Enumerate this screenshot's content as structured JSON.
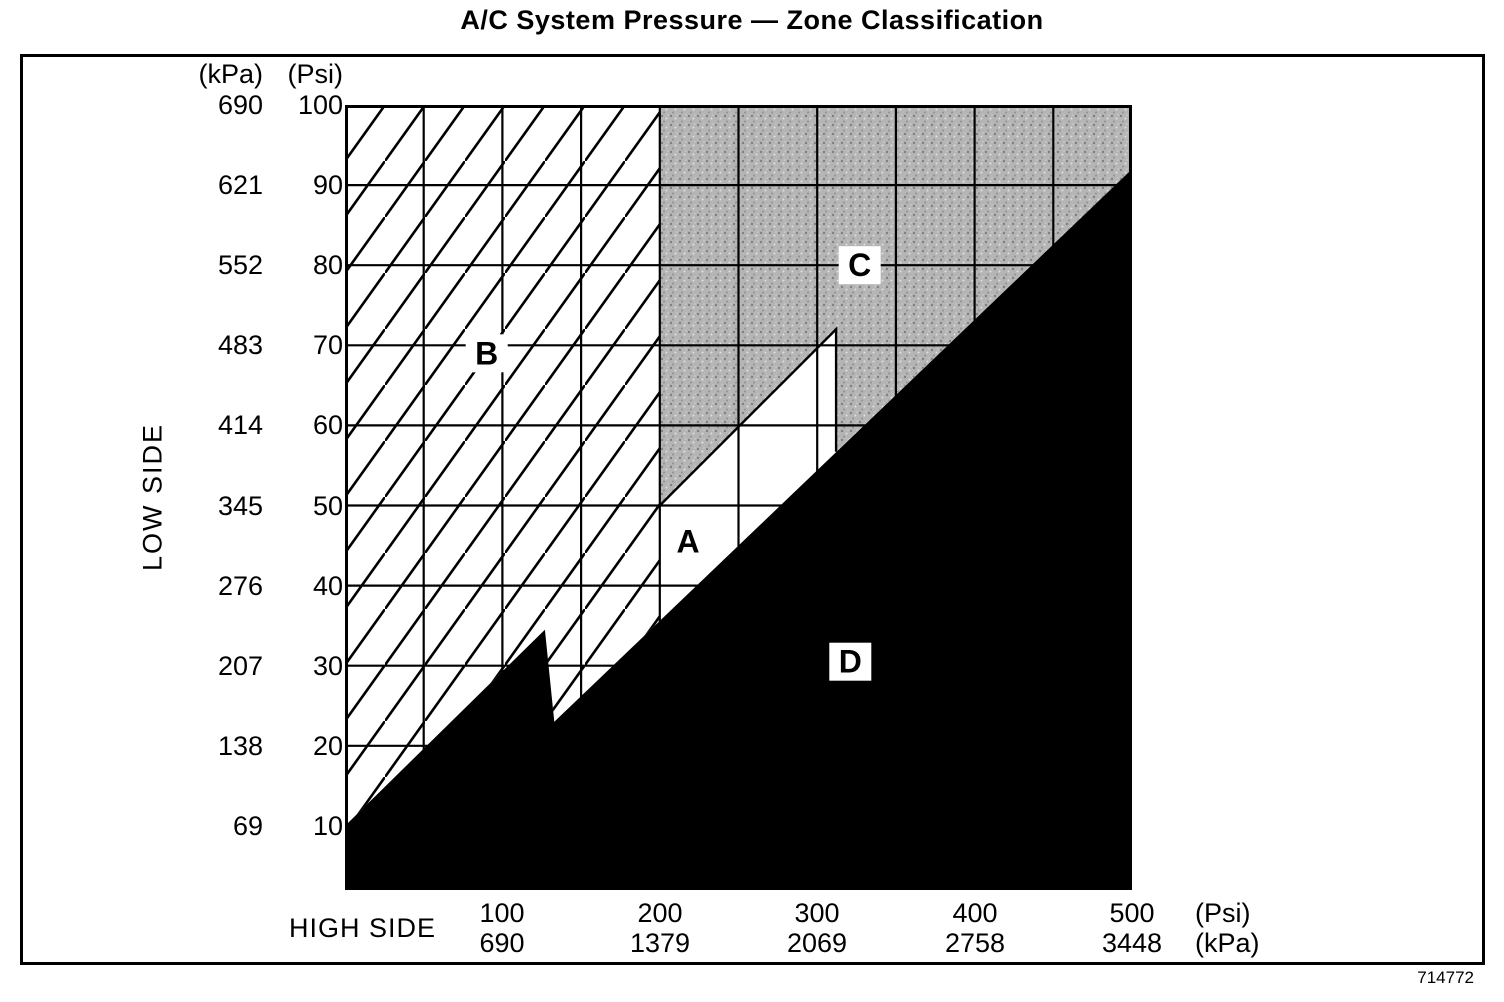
{
  "title": "A/C System Pressure — Zone Classification",
  "figure_number": "714772",
  "axes": {
    "y_title": "LOW SIDE",
    "x_title": "HIGH SIDE",
    "y_unit_kpa": "(kPa)",
    "y_unit_psi": "(Psi)",
    "x_unit_psi": "(Psi)",
    "x_unit_kpa": "(kPa)"
  },
  "colors": {
    "ink": "#000000",
    "paper": "#ffffff",
    "stipple_gray": "#b5b5b5"
  },
  "chart_data": {
    "type": "area",
    "title": "A/C System Pressure — Zone Classification",
    "xlabel": "HIGH SIDE",
    "ylabel": "LOW SIDE",
    "x_axis": {
      "label": "HIGH SIDE",
      "units": [
        "Psi",
        "kPa"
      ],
      "lim": [
        0,
        500
      ],
      "grid_interval_psi": 50,
      "ticks": [
        {
          "psi": "100",
          "kpa": "690"
        },
        {
          "psi": "200",
          "kpa": "1379"
        },
        {
          "psi": "300",
          "kpa": "2069"
        },
        {
          "psi": "400",
          "kpa": "2758"
        },
        {
          "psi": "500",
          "kpa": "3448"
        }
      ]
    },
    "y_axis": {
      "label": "LOW SIDE",
      "units": [
        "kPa",
        "Psi"
      ],
      "lim": [
        2,
        100
      ],
      "grid_interval_psi": 10,
      "ticks": [
        {
          "kpa": "690",
          "psi": "100"
        },
        {
          "kpa": "621",
          "psi": "90"
        },
        {
          "kpa": "552",
          "psi": "80"
        },
        {
          "kpa": "483",
          "psi": "70"
        },
        {
          "kpa": "414",
          "psi": "60"
        },
        {
          "kpa": "345",
          "psi": "50"
        },
        {
          "kpa": "276",
          "psi": "40"
        },
        {
          "kpa": "207",
          "psi": "30"
        },
        {
          "kpa": "138",
          "psi": "20"
        },
        {
          "kpa": "69",
          "psi": "10"
        }
      ]
    },
    "grid": true,
    "zones": [
      {
        "id": "B",
        "label": "B",
        "pattern": "hatch",
        "label_xy": [
          90,
          69
        ],
        "label_box": true,
        "above_grid": false,
        "points": [
          [
            0,
            100
          ],
          [
            200,
            100
          ],
          [
            200,
            35.6
          ],
          [
            133,
            23
          ],
          [
            127,
            34.5
          ],
          [
            0,
            10
          ]
        ]
      },
      {
        "id": "C",
        "label": "C",
        "pattern": "stipple",
        "label_xy": [
          327,
          80
        ],
        "label_box": true,
        "above_grid": false,
        "points": [
          [
            200,
            100
          ],
          [
            500,
            100
          ],
          [
            500,
            92
          ],
          [
            312,
            56.7
          ],
          [
            312,
            72
          ],
          [
            200,
            50
          ]
        ]
      },
      {
        "id": "A",
        "label": "A",
        "pattern": "white",
        "label_xy": [
          218,
          45.5
        ],
        "label_box": false,
        "above_grid": false,
        "points": [
          [
            200,
            50
          ],
          [
            312,
            72
          ],
          [
            312,
            56.7
          ],
          [
            200,
            35.6
          ]
        ]
      },
      {
        "id": "D",
        "label": "D",
        "pattern": "black",
        "label_xy": [
          321,
          30.5
        ],
        "label_box": true,
        "above_grid": true,
        "points": [
          [
            0,
            2
          ],
          [
            0,
            10
          ],
          [
            127,
            34.5
          ],
          [
            133,
            23
          ],
          [
            500,
            92
          ],
          [
            500,
            2
          ]
        ]
      }
    ],
    "boundaries": [
      {
        "name": "zone-a-upper-right-boundary",
        "points": [
          [
            200,
            50
          ],
          [
            312,
            72
          ],
          [
            312,
            56.7
          ]
        ]
      }
    ]
  }
}
